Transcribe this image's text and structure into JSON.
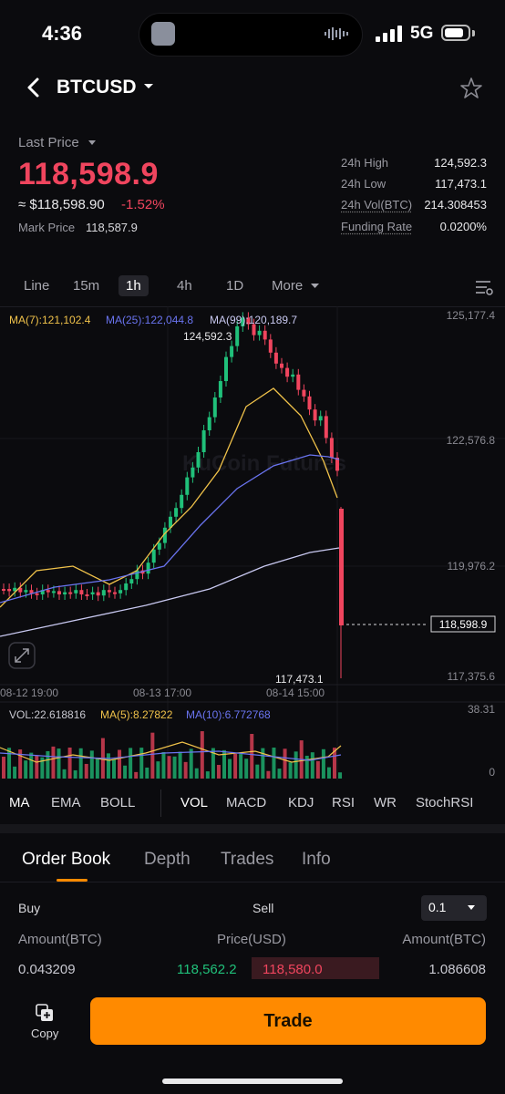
{
  "status_bar": {
    "time": "4:36",
    "network": "5G"
  },
  "header": {
    "pair": "BTCUSD"
  },
  "price": {
    "last_label": "Last Price",
    "last": "118,598.9",
    "usd_equiv": "≈ $118,598.90",
    "change": "-1.52%",
    "mark_label": "Mark Price",
    "mark_value": "118,587.9"
  },
  "stats": [
    {
      "label": "24h High",
      "value": "124,592.3"
    },
    {
      "label": "24h Low",
      "value": "117,473.1"
    },
    {
      "label": "24h Vol(BTC)",
      "value": "214.308453"
    },
    {
      "label": "Funding Rate",
      "value": "0.0200%"
    }
  ],
  "timeframes": [
    "Line",
    "15m",
    "1h",
    "4h",
    "1D",
    "More"
  ],
  "active_timeframe": "1h",
  "chart_data": {
    "type": "candlestick",
    "ma_legend": [
      {
        "label": "MA(7):121,102.4",
        "color": "#f0c24a"
      },
      {
        "label": "MA(25):122,044.8",
        "color": "#6a74f0"
      },
      {
        "label": "MA(99):120,189.7",
        "color": "#c8c8f0"
      }
    ],
    "y_ticks": [
      "125,177.4",
      "122,576.8",
      "119,976.2",
      "117,375.6"
    ],
    "x_ticks": [
      "08-12 19:00",
      "08-13 17:00",
      "08-14 15:00"
    ],
    "high_annotation": "124,592.3",
    "low_annotation": "117,473.1",
    "current_price_tag": "118,598.9",
    "watermark": "KuCoin Futures",
    "volume_legend": [
      {
        "label": "VOL:22.618816",
        "color": "#c8c8d0"
      },
      {
        "label": "MA(5):8.27822",
        "color": "#f0c24a"
      },
      {
        "label": "MA(10):6.772768",
        "color": "#6a74f0"
      }
    ],
    "volume_ticks": [
      "38.31",
      "0"
    ],
    "up_color": "#20c07a",
    "down_color": "#f0455e"
  },
  "indicators": [
    "MA",
    "EMA",
    "BOLL",
    "VOL",
    "MACD",
    "KDJ",
    "RSI",
    "WR",
    "StochRSI"
  ],
  "order_book": {
    "tabs": [
      "Order Book",
      "Depth",
      "Trades",
      "Info"
    ],
    "buy_label": "Buy",
    "sell_label": "Sell",
    "precision": "0.1",
    "col_amount_left": "Amount(BTC)",
    "col_price": "Price(USD)",
    "col_amount_right": "Amount(BTC)",
    "row": {
      "buy_amount": "0.043209",
      "buy_price": "118,562.2",
      "sell_price": "118,580.0",
      "sell_amount": "1.086608"
    }
  },
  "bottom": {
    "copy_label": "Copy",
    "trade_label": "Trade"
  }
}
